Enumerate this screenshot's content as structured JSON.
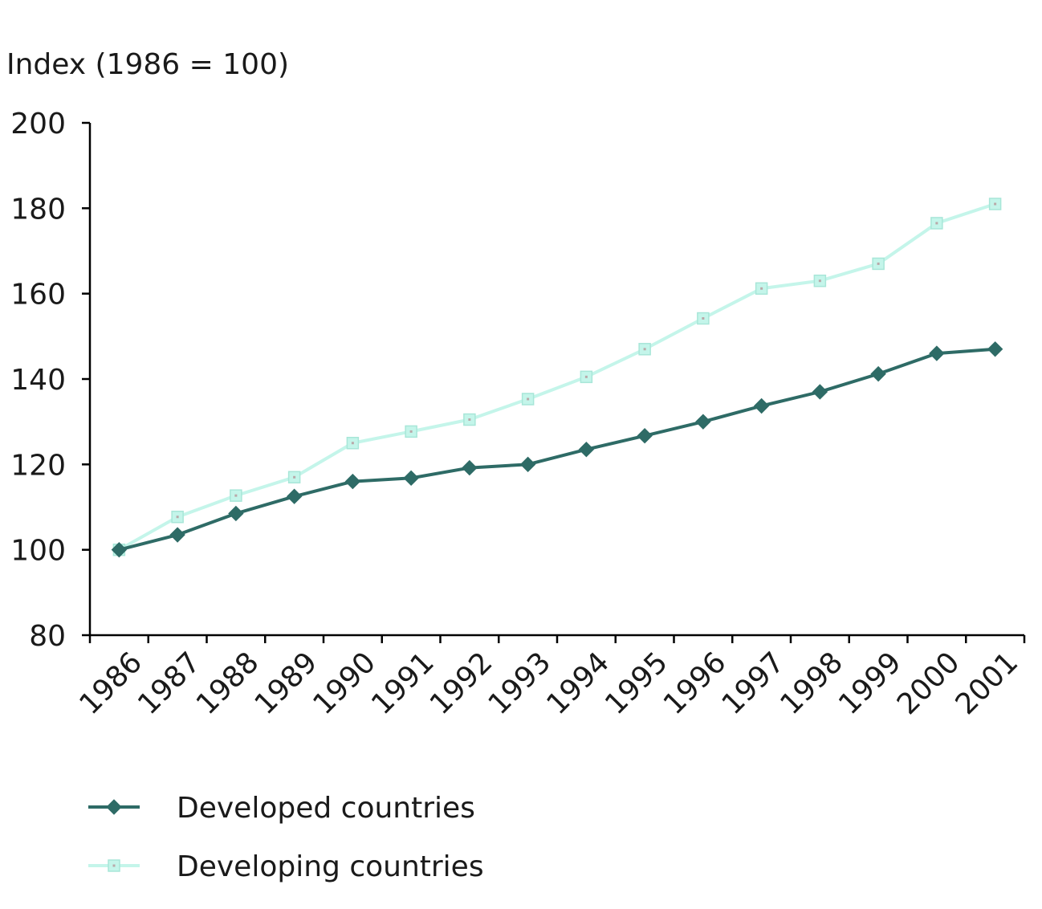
{
  "chart_data": {
    "type": "line",
    "title": "",
    "ylabel": "Index (1986 = 100)",
    "xlabel": "",
    "ylim": [
      80,
      200
    ],
    "yticks": [
      80,
      100,
      120,
      140,
      160,
      180,
      200
    ],
    "x": [
      "1986",
      "1987",
      "1988",
      "1989",
      "1990",
      "1991",
      "1992",
      "1993",
      "1994",
      "1995",
      "1996",
      "1997",
      "1998",
      "1999",
      "2000",
      "2001"
    ],
    "series": [
      {
        "name": "Developed countries",
        "marker": "diamond",
        "color": "#2e6b66",
        "values": [
          100,
          103.5,
          108.5,
          112.5,
          116,
          116.8,
          119.2,
          120,
          123.5,
          126.7,
          130,
          133.7,
          137,
          141.2,
          146,
          147
        ]
      },
      {
        "name": "Developing countries",
        "marker": "square",
        "color": "#c4f5ea",
        "values": [
          100,
          107.7,
          112.7,
          117,
          125,
          127.7,
          130.5,
          135.3,
          140.5,
          147,
          154.2,
          161.2,
          163,
          167,
          176.5,
          181
        ]
      }
    ],
    "grid": false,
    "legend_position": "bottom-left"
  }
}
